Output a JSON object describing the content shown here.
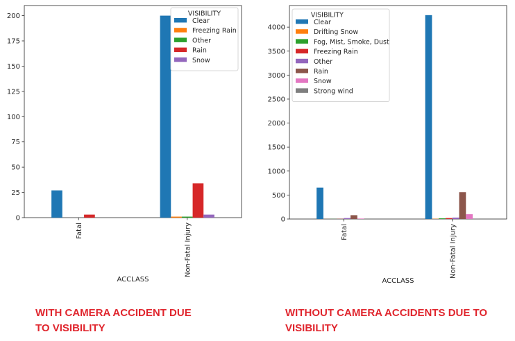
{
  "captions": {
    "left": [
      "WITH CAMERA ACCIDENT DUE",
      "TO VISIBILITY"
    ],
    "right": [
      "WITHOUT CAMERA ACCIDENTS DUE TO",
      "VISIBILITY"
    ],
    "color": "#e0262e"
  },
  "chart_data": [
    {
      "type": "bar",
      "categories": [
        "Fatal",
        "Non-Fatal Injury"
      ],
      "xlabel": "ACCLASS",
      "ylabel": "",
      "ylim": [
        0,
        210
      ],
      "yticks": [
        0,
        25,
        50,
        75,
        100,
        125,
        150,
        175,
        200
      ],
      "grid": false,
      "legend": {
        "title": "VISIBILITY",
        "placement": "top-right"
      },
      "series": [
        {
          "name": "Clear",
          "color": "#1f77b4",
          "values": [
            27,
            200
          ]
        },
        {
          "name": "Freezing Rain",
          "color": "#ff7f0e",
          "values": [
            0,
            1
          ]
        },
        {
          "name": "Other",
          "color": "#2ca02c",
          "values": [
            0,
            1
          ]
        },
        {
          "name": "Rain",
          "color": "#d62728",
          "values": [
            3,
            34
          ]
        },
        {
          "name": "Snow",
          "color": "#9467bd",
          "values": [
            0,
            3
          ]
        }
      ]
    },
    {
      "type": "bar",
      "categories": [
        "Fatal",
        "Non-Fatal Injury"
      ],
      "xlabel": "ACCLASS",
      "ylabel": "",
      "ylim": [
        0,
        4450
      ],
      "yticks": [
        0,
        500,
        1000,
        1500,
        2000,
        2500,
        3000,
        3500,
        4000
      ],
      "grid": false,
      "legend": {
        "title": "VISIBILITY",
        "placement": "top-left"
      },
      "series": [
        {
          "name": "Clear",
          "color": "#1f77b4",
          "values": [
            655,
            4250
          ]
        },
        {
          "name": "Drifting Snow",
          "color": "#ff7f0e",
          "values": [
            1,
            5
          ]
        },
        {
          "name": "Fog, Mist, Smoke, Dust",
          "color": "#2ca02c",
          "values": [
            2,
            14
          ]
        },
        {
          "name": "Freezing Rain",
          "color": "#d62728",
          "values": [
            3,
            20
          ]
        },
        {
          "name": "Other",
          "color": "#9467bd",
          "values": [
            20,
            30
          ]
        },
        {
          "name": "Rain",
          "color": "#8c564b",
          "values": [
            80,
            560
          ]
        },
        {
          "name": "Snow",
          "color": "#e377c2",
          "values": [
            10,
            100
          ]
        },
        {
          "name": "Strong wind",
          "color": "#7f7f7f",
          "values": [
            0,
            1
          ]
        }
      ]
    }
  ]
}
